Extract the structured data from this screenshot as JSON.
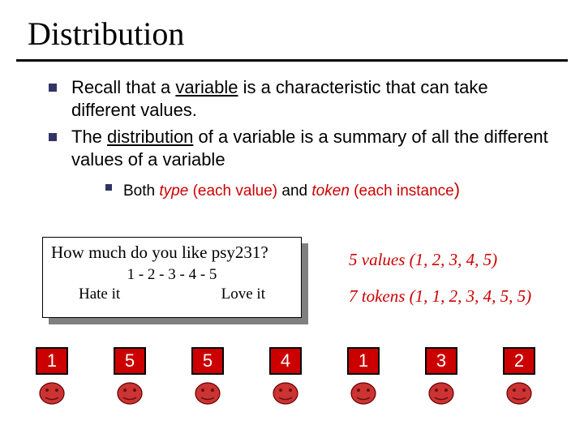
{
  "title": "Distribution",
  "bullets": {
    "b1_pre": "Recall that a ",
    "b1_ul": "variable",
    "b1_post": " is a characteristic that can take different values.",
    "b2_pre": "The ",
    "b2_ul": "distribution",
    "b2_post": " of a variable is a summary of all the different values of a variable",
    "sub_pre": "Both ",
    "sub_t1": "type",
    "sub_t1p": " (each value)",
    "sub_mid": " and ",
    "sub_t2": "token",
    "sub_t2p": " (each instance",
    "sub_close": ")"
  },
  "box": {
    "question": "How much do you like psy231?",
    "scale": "1 - 2 - 3 - 4 - 5",
    "left": "Hate it",
    "right": "Love it"
  },
  "notes": {
    "values": "5 values (1, 2, 3, 4, 5)",
    "tokens": "7 tokens (1, 1, 2, 3, 4, 5, 5)"
  },
  "numbers": [
    "1",
    "5",
    "5",
    "4",
    "1",
    "3",
    "2"
  ],
  "colors": {
    "bullet": "#333366",
    "accent": "#cc0000",
    "rule": "#000000",
    "numbox_bg": "#cc0000",
    "numbox_fg": "#ffffff"
  },
  "face": {
    "fill": "#cc3333",
    "stroke": "#660000"
  }
}
